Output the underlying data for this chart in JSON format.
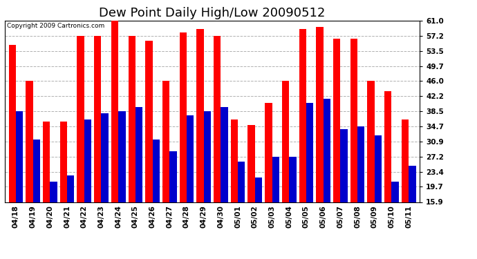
{
  "title": "Dew Point Daily High/Low 20090512",
  "copyright": "Copyright 2009 Cartronics.com",
  "dates": [
    "04/18",
    "04/19",
    "04/20",
    "04/21",
    "04/22",
    "04/23",
    "04/24",
    "04/25",
    "04/26",
    "04/27",
    "04/28",
    "04/29",
    "04/30",
    "05/01",
    "05/02",
    "05/03",
    "05/04",
    "05/05",
    "05/06",
    "05/07",
    "05/08",
    "05/09",
    "05/10",
    "05/11"
  ],
  "highs": [
    55.0,
    46.0,
    36.0,
    36.0,
    57.2,
    57.2,
    61.0,
    57.2,
    56.0,
    46.0,
    58.0,
    59.0,
    57.2,
    36.5,
    35.0,
    40.5,
    46.0,
    59.0,
    59.5,
    56.5,
    56.5,
    46.0,
    43.5,
    36.5
  ],
  "lows": [
    38.5,
    31.5,
    21.0,
    22.5,
    36.5,
    38.0,
    38.5,
    39.5,
    31.5,
    28.5,
    37.5,
    38.5,
    39.5,
    26.0,
    22.0,
    27.2,
    27.2,
    40.5,
    41.5,
    34.0,
    34.7,
    32.5,
    21.0,
    25.0
  ],
  "yticks": [
    15.9,
    19.7,
    23.4,
    27.2,
    30.9,
    34.7,
    38.5,
    42.2,
    46.0,
    49.7,
    53.5,
    57.2,
    61.0
  ],
  "ymin": 15.9,
  "ymax": 61.0,
  "high_color": "#ff0000",
  "low_color": "#0000cc",
  "bg_color": "#ffffff",
  "grid_color": "#b0b0b0",
  "title_fontsize": 13,
  "tick_fontsize": 7.5,
  "copyright_fontsize": 6.5
}
